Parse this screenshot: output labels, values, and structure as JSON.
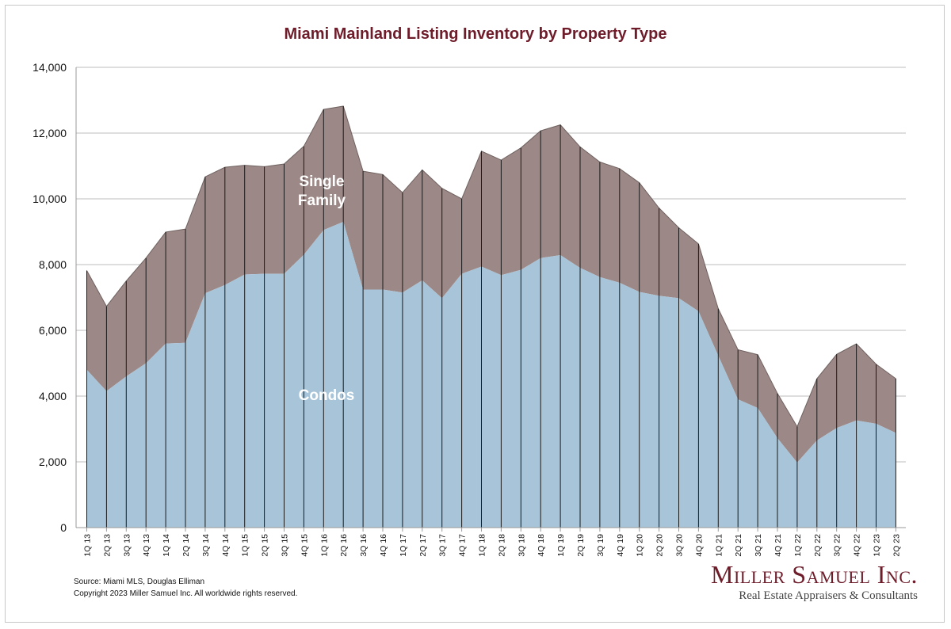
{
  "chart_data": {
    "type": "area",
    "stacked": true,
    "title": "Miami Mainland Listing Inventory by Property Type",
    "xlabel": "",
    "ylabel": "",
    "ylim": [
      0,
      14000
    ],
    "yticks": [
      0,
      2000,
      4000,
      6000,
      8000,
      10000,
      12000,
      14000
    ],
    "ytick_labels": [
      "0",
      "2,000",
      "4,000",
      "6,000",
      "8,000",
      "10,000",
      "12,000",
      "14,000"
    ],
    "grid": true,
    "legend": "in-plot labels",
    "categories": [
      "1Q 13",
      "2Q 13",
      "3Q 13",
      "4Q 13",
      "1Q 14",
      "2Q 14",
      "3Q 14",
      "4Q 14",
      "1Q 15",
      "2Q 15",
      "3Q 15",
      "4Q 15",
      "1Q 16",
      "2Q 16",
      "3Q 16",
      "4Q 16",
      "1Q 17",
      "2Q 17",
      "3Q 17",
      "4Q 17",
      "1Q 18",
      "2Q 18",
      "3Q 18",
      "4Q 18",
      "1Q 19",
      "2Q 19",
      "3Q 19",
      "4Q 19",
      "1Q 20",
      "2Q 20",
      "3Q 20",
      "4Q 20",
      "1Q 21",
      "2Q 21",
      "3Q 21",
      "4Q 21",
      "1Q 22",
      "2Q 22",
      "3Q 22",
      "4Q 22",
      "1Q 23",
      "2Q 23"
    ],
    "series": [
      {
        "name": "Condos",
        "color": "#a8c4d8",
        "values": [
          4800,
          4150,
          4600,
          5000,
          5600,
          5620,
          7130,
          7380,
          7700,
          7720,
          7720,
          8300,
          9050,
          9300,
          7240,
          7240,
          7150,
          7520,
          6980,
          7720,
          7940,
          7680,
          7840,
          8200,
          8290,
          7900,
          7620,
          7450,
          7170,
          7050,
          6980,
          6580,
          5230,
          3900,
          3640,
          2720,
          1980,
          2650,
          3030,
          3260,
          3160,
          2880
        ]
      },
      {
        "name": "Single Family",
        "color": "#9c8886",
        "values": [
          3020,
          2580,
          2900,
          3200,
          3390,
          3460,
          3540,
          3580,
          3320,
          3260,
          3340,
          3300,
          3670,
          3520,
          3600,
          3500,
          3040,
          3360,
          3340,
          2280,
          3510,
          3500,
          3710,
          3870,
          3960,
          3680,
          3500,
          3470,
          3320,
          2670,
          2140,
          2050,
          1430,
          1510,
          1620,
          1360,
          1090,
          1880,
          2240,
          2330,
          1810,
          1650
        ]
      }
    ],
    "colors": {
      "title": "#6e1c2a",
      "condos": "#a8c4d8",
      "single_family": "#9c8886",
      "grid": "#bdbdbd"
    }
  },
  "labels": {
    "single_family_line1": "Single",
    "single_family_line2": "Family",
    "condos": "Condos"
  },
  "footer": {
    "source": "Source: Miami MLS, Douglas Elliman",
    "copyright": "Copyright 2023 Miller Samuel Inc.  All worldwide rights reserved."
  },
  "brand": {
    "name": "Miller Samuel Inc.",
    "tagline": "Real Estate Appraisers & Consultants"
  }
}
